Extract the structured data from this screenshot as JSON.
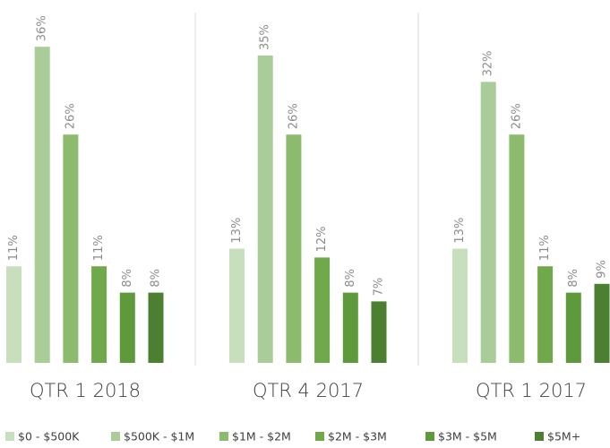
{
  "chart_data": {
    "type": "bar",
    "categories": [
      "QTR 1 2018",
      "QTR 4 2017",
      "QTR 1 2017"
    ],
    "ylim": [
      0,
      40
    ],
    "series": [
      {
        "name": "$0 - $500K",
        "color": "#c8dfbe",
        "values": [
          11,
          13,
          13
        ],
        "value_labels": [
          "11%",
          "13%",
          "13%"
        ]
      },
      {
        "name": "$500K - $1M",
        "color": "#a9cc98",
        "values": [
          36,
          35,
          32
        ],
        "value_labels": [
          "36%",
          "35%",
          "32%"
        ]
      },
      {
        "name": "$1M - $2M",
        "color": "#8cbb6e",
        "values": [
          26,
          26,
          26
        ],
        "value_labels": [
          "26%",
          "26%",
          "26%"
        ]
      },
      {
        "name": "$2M - $3M",
        "color": "#70a84c",
        "values": [
          11,
          12,
          11
        ],
        "value_labels": [
          "11%",
          "12%",
          "11%"
        ]
      },
      {
        "name": "$3M - $5M",
        "color": "#5e9a3c",
        "values": [
          8,
          8,
          8
        ],
        "value_labels": [
          "8%",
          "8%",
          "8%"
        ]
      },
      {
        "name": "$5M+",
        "color": "#4c7f30",
        "values": [
          8,
          7,
          9
        ],
        "value_labels": [
          "8%",
          "7%",
          "9%"
        ]
      }
    ]
  }
}
